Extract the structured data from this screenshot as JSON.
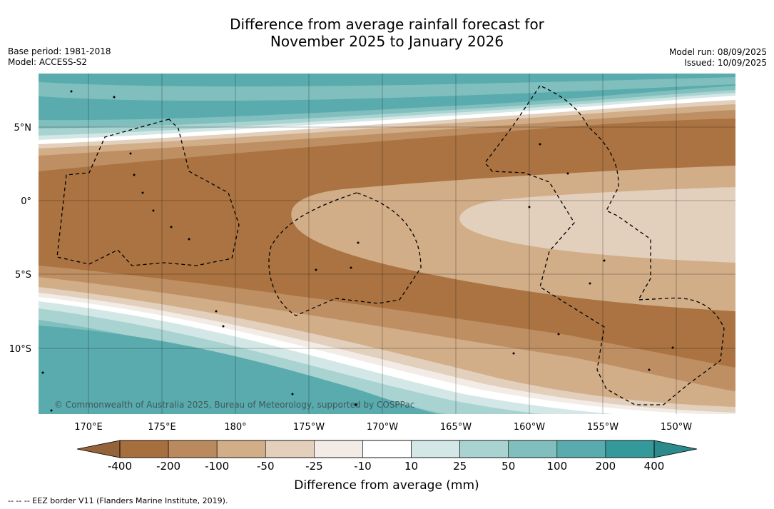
{
  "title_line1": "Difference from average rainfall forecast for",
  "title_line2": "November 2025 to January 2026",
  "meta_left": {
    "base_period": "Base period: 1981-2018",
    "model": "Model: ACCESS-S2"
  },
  "meta_right": {
    "model_run": "Model run: 08/09/2025",
    "issued": "Issued: 10/09/2025"
  },
  "lat_labels": [
    "5°N",
    "0°",
    "5°S",
    "10°S"
  ],
  "lon_labels": [
    "170°E",
    "175°E",
    "180°",
    "175°W",
    "170°W",
    "165°W",
    "160°W",
    "155°W",
    "150°W"
  ],
  "copyright": "© Commonwealth of Australia 2025, Bureau of Meteorology, supported by COSPPac",
  "legend": {
    "ticks": [
      "-400",
      "-200",
      "-100",
      "-50",
      "-25",
      "-10",
      "10",
      "25",
      "50",
      "100",
      "200",
      "400"
    ],
    "label": "Difference from average (mm)",
    "colors": [
      "#a86f3e",
      "#ba8a5e",
      "#d1ad88",
      "#e3cfbb",
      "#f3ece6",
      "#ffffff",
      "#d3e8e6",
      "#a9d3d1",
      "#80bfbd",
      "#5aabad",
      "#34999b"
    ],
    "low_cap_color": "#95633a",
    "high_cap_color": "#2c8a8c"
  },
  "colors": {
    "dry_strong": "#aa7341",
    "dry_mid": "#be8f63",
    "dry_light": "#d1ad88",
    "dry_pale": "#e2cfbc",
    "wet_light": "#a9d3d1",
    "wet_mid": "#80bfbd",
    "wet_strong": "#5aabad"
  },
  "footer": "--  --  -- EEZ border V11 (Flanders Marine Institute, 2019)."
}
